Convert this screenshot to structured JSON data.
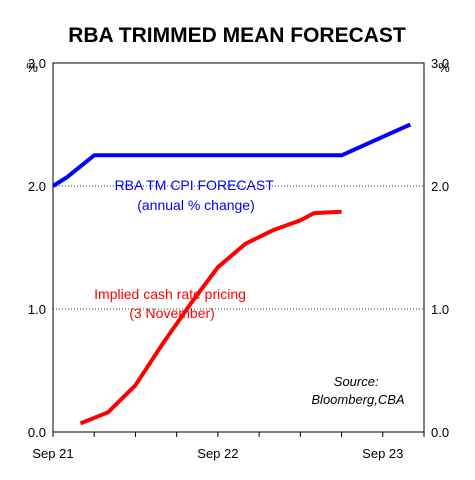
{
  "chart_data": {
    "type": "line",
    "title": "RBA TRIMMED MEAN FORECAST",
    "y_unit_left": "%",
    "y_unit_right": "%",
    "ylim": [
      0,
      3.0
    ],
    "yticks": [
      "0.0",
      "1.0",
      "2.0",
      "3.0"
    ],
    "x_tick_labels": [
      "Sep 21",
      "Sep 22",
      "Sep 23"
    ],
    "xlim": [
      "2021-09",
      "2023-12"
    ],
    "grid": "horizontal dotted",
    "series": [
      {
        "name_lines": [
          "RBA TM CPI FORECAST",
          "(annual % change)"
        ],
        "color": "#0000ff",
        "points": [
          [
            "2021-09",
            2.0
          ],
          [
            "2021-10",
            2.07
          ],
          [
            "2021-12",
            2.25
          ],
          [
            "2022-03",
            2.25
          ],
          [
            "2022-06",
            2.25
          ],
          [
            "2022-09",
            2.25
          ],
          [
            "2022-12",
            2.25
          ],
          [
            "2023-03",
            2.25
          ],
          [
            "2023-06",
            2.25
          ],
          [
            "2023-09",
            2.4
          ],
          [
            "2023-11",
            2.5
          ]
        ]
      },
      {
        "name_lines": [
          "Implied cash rate pricing",
          "(3 November)"
        ],
        "color": "#ff0000",
        "points": [
          [
            "2021-11",
            0.07
          ],
          [
            "2022-01",
            0.16
          ],
          [
            "2022-03",
            0.38
          ],
          [
            "2022-05",
            0.72
          ],
          [
            "2022-07",
            1.04
          ],
          [
            "2022-09",
            1.34
          ],
          [
            "2022-11",
            1.53
          ],
          [
            "2023-01",
            1.64
          ],
          [
            "2023-03",
            1.72
          ],
          [
            "2023-04",
            1.78
          ],
          [
            "2023-06",
            1.79
          ]
        ]
      }
    ],
    "source_lines": [
      "Source:",
      "Bloomberg,CBA"
    ]
  }
}
